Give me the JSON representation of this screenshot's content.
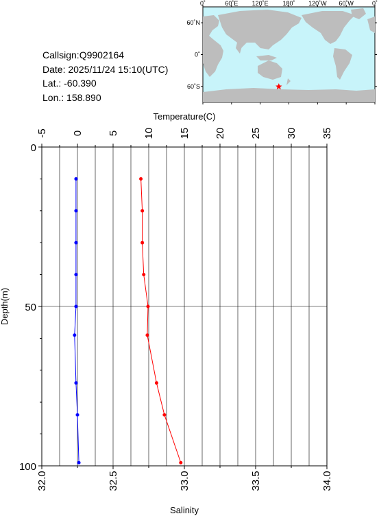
{
  "station": {
    "callsign": "Callsign:Q9902164",
    "date": "Date:  2025/11/24 15:10(UTC)",
    "lat": "Lat.:  -60.390",
    "lon": "Lon.:  158.890"
  },
  "map": {
    "top_labels": [
      "0˚",
      "60˚E",
      "120˚E",
      "180˚",
      "120˚W",
      "60˚W",
      "0˚"
    ],
    "side_labels": [
      "60˚N",
      "0˚",
      "60˚S"
    ],
    "ocean_color": "#c8f4fa",
    "land_color": "#bdbdbd",
    "marker_color": "#ff0000",
    "marker": {
      "lon": 158.89,
      "lat": -60.39
    }
  },
  "chart_data": {
    "type": "line",
    "xlabel_top": "Temperature(C)",
    "xlabel_bottom": "Salinity",
    "ylabel": "Depth(m)",
    "temperature_axis": {
      "range": [
        -5,
        35
      ],
      "ticks": [
        "-5",
        "0",
        "5",
        "10",
        "15",
        "20",
        "25",
        "30",
        "35"
      ]
    },
    "salinity_axis": {
      "range": [
        32.0,
        34.0
      ],
      "ticks": [
        "32.0",
        "32.5",
        "33.0",
        "33.5",
        "34.0"
      ]
    },
    "depth_axis": {
      "range": [
        0,
        100
      ],
      "ticks": [
        "0",
        "50",
        "100"
      ]
    },
    "series": [
      {
        "quantity": "temperature",
        "color": "#ff0000",
        "points": [
          [
            8.9,
            10
          ],
          [
            9.1,
            20
          ],
          [
            9.1,
            30
          ],
          [
            9.3,
            40
          ],
          [
            9.9,
            50
          ],
          [
            9.8,
            59
          ],
          [
            11.1,
            74
          ],
          [
            12.2,
            84
          ],
          [
            14.5,
            99
          ]
        ]
      },
      {
        "quantity": "salinity",
        "color": "#0000ff",
        "points": [
          [
            32.24,
            10
          ],
          [
            32.24,
            20
          ],
          [
            32.24,
            30
          ],
          [
            32.24,
            40
          ],
          [
            32.24,
            50
          ],
          [
            32.23,
            59
          ],
          [
            32.24,
            74
          ],
          [
            32.25,
            84
          ],
          [
            32.26,
            99
          ]
        ]
      }
    ],
    "grid": true
  }
}
